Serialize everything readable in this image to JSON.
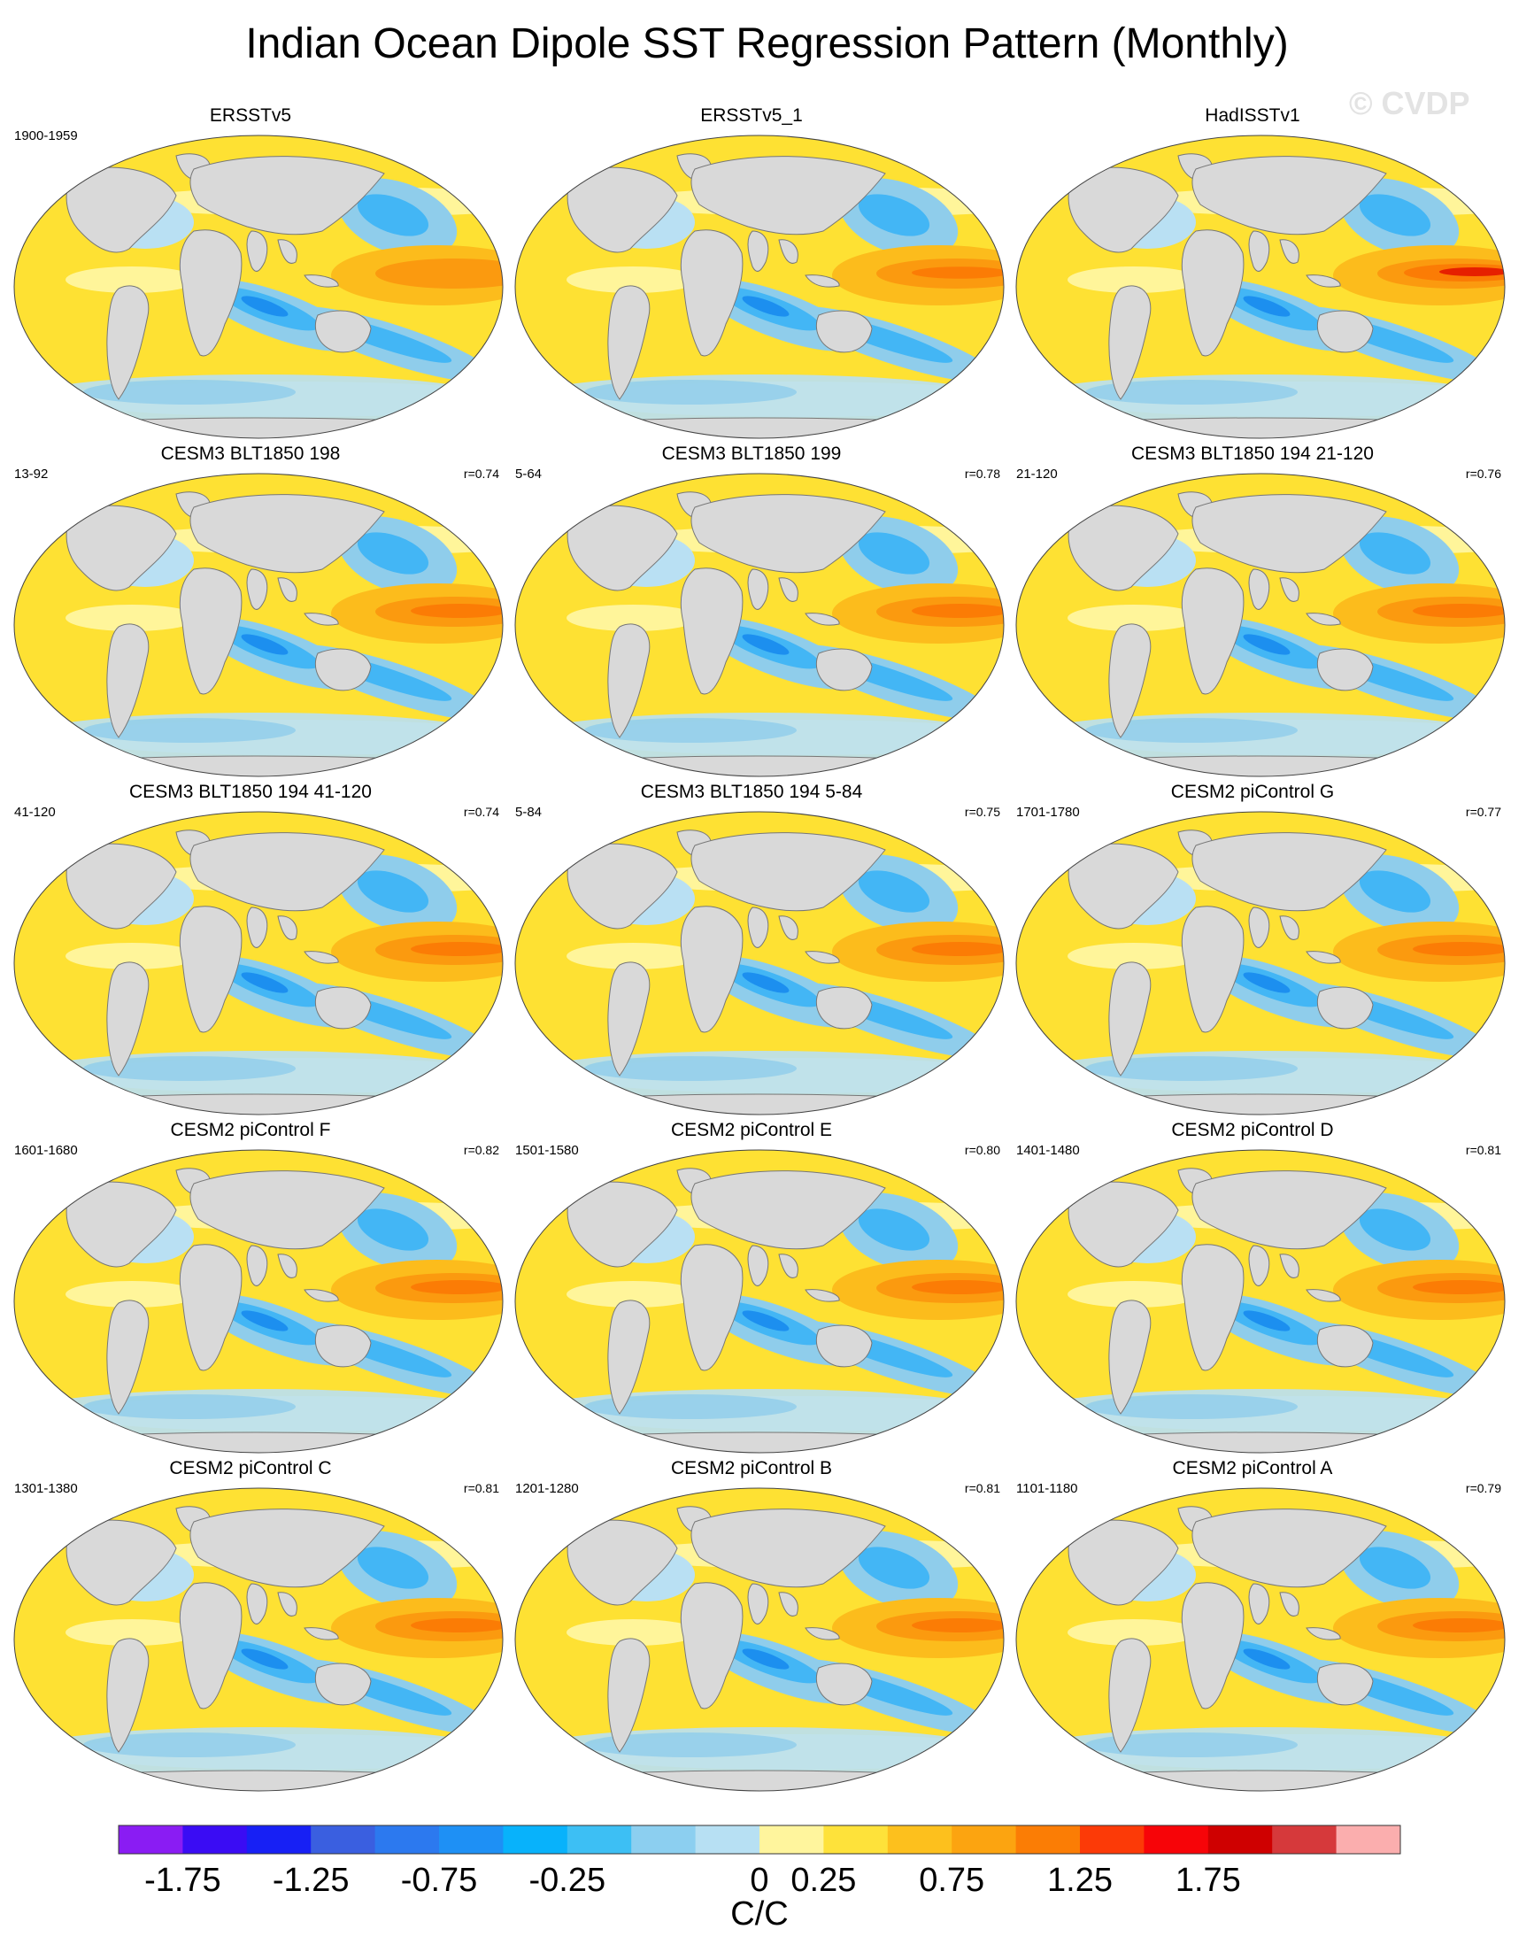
{
  "title": "Indian Ocean Dipole SST Regression Pattern (Monthly)",
  "watermark": "© CVDP",
  "panels": [
    {
      "title": "ERSSTv5",
      "period": "1900-1959",
      "r": ""
    },
    {
      "title": "ERSSTv5_1",
      "period": "",
      "r": ""
    },
    {
      "title": "HadISSTv1",
      "period": "",
      "r": ""
    },
    {
      "title": "CESM3 BLT1850 198",
      "period": "13-92",
      "r": "r=0.74"
    },
    {
      "title": "CESM3 BLT1850 199",
      "period": "5-64",
      "r": "r=0.78"
    },
    {
      "title": "CESM3 BLT1850 194 21-120",
      "period": "21-120",
      "r": "r=0.76"
    },
    {
      "title": "CESM3 BLT1850 194 41-120",
      "period": "41-120",
      "r": "r=0.74"
    },
    {
      "title": "CESM3 BLT1850 194 5-84",
      "period": "5-84",
      "r": "r=0.75"
    },
    {
      "title": "CESM2 piControl G",
      "period": "1701-1780",
      "r": "r=0.77"
    },
    {
      "title": "CESM2 piControl F",
      "period": "1601-1680",
      "r": "r=0.82"
    },
    {
      "title": "CESM2 piControl E",
      "period": "1501-1580",
      "r": "r=0.80"
    },
    {
      "title": "CESM2 piControl D",
      "period": "1401-1480",
      "r": "r=0.81"
    },
    {
      "title": "CESM2 piControl C",
      "period": "1301-1380",
      "r": "r=0.81"
    },
    {
      "title": "CESM2 piControl B",
      "period": "1201-1280",
      "r": "r=0.81"
    },
    {
      "title": "CESM2 piControl A",
      "period": "1101-1180",
      "r": "r=0.79"
    }
  ],
  "colors": {
    "land": "#d9d9d9",
    "coast": "#777777",
    "neg_strong": "#1c8fef",
    "neg_mid": "#43b6f5",
    "neg_weak": "#8fcdeb",
    "neg_faint": "#b9e0f3",
    "pos_faint": "#fff59a",
    "pos_weak": "#fee133",
    "pos_mid": "#fcbc1c",
    "pos_strong": "#fb9a0f",
    "pos_vstrong": "#fb7c05",
    "pos_max": "#e62000"
  },
  "chart_data": {
    "type": "heatmap",
    "title": "Indian Ocean Dipole SST Regression Pattern (Monthly)",
    "projection": "global map (elliptical), 5 rows x 3 columns of panels",
    "units": "C/C",
    "colorbar": {
      "units": "C/C",
      "level_colors": [
        "#8a1cf3",
        "#3a0cf4",
        "#1720f5",
        "#3a5fe0",
        "#2c79ef",
        "#1e90f5",
        "#08b2fb",
        "#3dbff4",
        "#8ccff0",
        "#b7e0f3",
        "#fff59d",
        "#fee23a",
        "#fdc01d",
        "#fca410",
        "#fb7d05",
        "#fc3a07",
        "#f70408",
        "#cf0000",
        "#d6393b",
        "#fbaeae"
      ],
      "tick_labels": [
        "-1.75",
        "-1.25",
        "-0.75",
        "-0.25",
        "0",
        "0.25",
        "0.75",
        "1.25",
        "1.75"
      ],
      "tick_boundary_index": [
        1,
        3,
        5,
        7,
        10,
        11,
        13,
        15,
        17
      ]
    },
    "pattern_correlations": [
      {
        "panel": "CESM3 BLT1850 198",
        "r": 0.74
      },
      {
        "panel": "CESM3 BLT1850 199",
        "r": 0.78
      },
      {
        "panel": "CESM3 BLT1850 194 21-120",
        "r": 0.76
      },
      {
        "panel": "CESM3 BLT1850 194 41-120",
        "r": 0.74
      },
      {
        "panel": "CESM3 BLT1850 194 5-84",
        "r": 0.75
      },
      {
        "panel": "CESM2 piControl G",
        "r": 0.77
      },
      {
        "panel": "CESM2 piControl F",
        "r": 0.82
      },
      {
        "panel": "CESM2 piControl E",
        "r": 0.8
      },
      {
        "panel": "CESM2 piControl D",
        "r": 0.81
      },
      {
        "panel": "CESM2 piControl C",
        "r": 0.81
      },
      {
        "panel": "CESM2 piControl B",
        "r": 0.81
      },
      {
        "panel": "CESM2 piControl A",
        "r": 0.79
      }
    ]
  }
}
